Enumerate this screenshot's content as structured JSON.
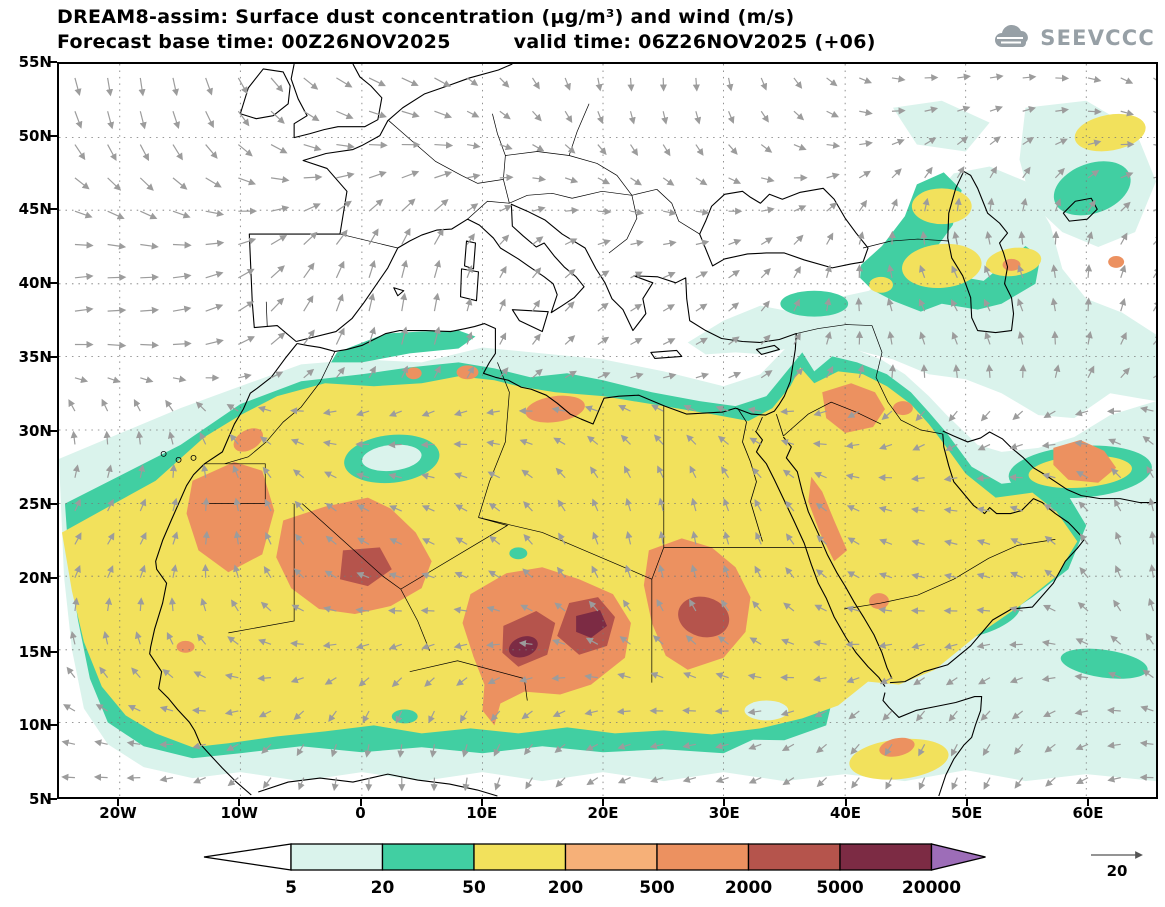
{
  "header": {
    "title_line1": "DREAM8-assim: Surface dust concentration (μg/m³) and wind (m/s)",
    "base_time": "Forecast base time: 00Z26NOV2025",
    "valid_time": "valid time: 06Z26NOV2025 (+06)",
    "logo_text": "SEEVCCC"
  },
  "map": {
    "lat_labels": [
      "55N",
      "50N",
      "45N",
      "40N",
      "35N",
      "30N",
      "25N",
      "20N",
      "15N",
      "10N",
      "5N"
    ],
    "lon_labels": [
      "20W",
      "10W",
      "0",
      "10E",
      "20E",
      "30E",
      "40E",
      "50E",
      "60E"
    ]
  },
  "legend": {
    "boundaries": [
      "5",
      "20",
      "50",
      "200",
      "500",
      "2000",
      "5000",
      "20000"
    ],
    "segment_colors": [
      "#daf3ec",
      "#41cfa2",
      "#f2e15c",
      "#f6b078",
      "#ec9160",
      "#b5544c",
      "#7c2b44"
    ],
    "wind_ref_label": "20"
  },
  "palette": {
    "pale_cyan": "#daf3ec",
    "teal": "#41cfa2",
    "yellow": "#f2e15c",
    "orange_light": "#f6b078",
    "orange": "#ec9160",
    "brick": "#b5544c",
    "maroon": "#7c2b44",
    "purple": "#9d6db8",
    "wind_gray": "#9c9c9c",
    "logo_gray": "#97a0a6"
  }
}
